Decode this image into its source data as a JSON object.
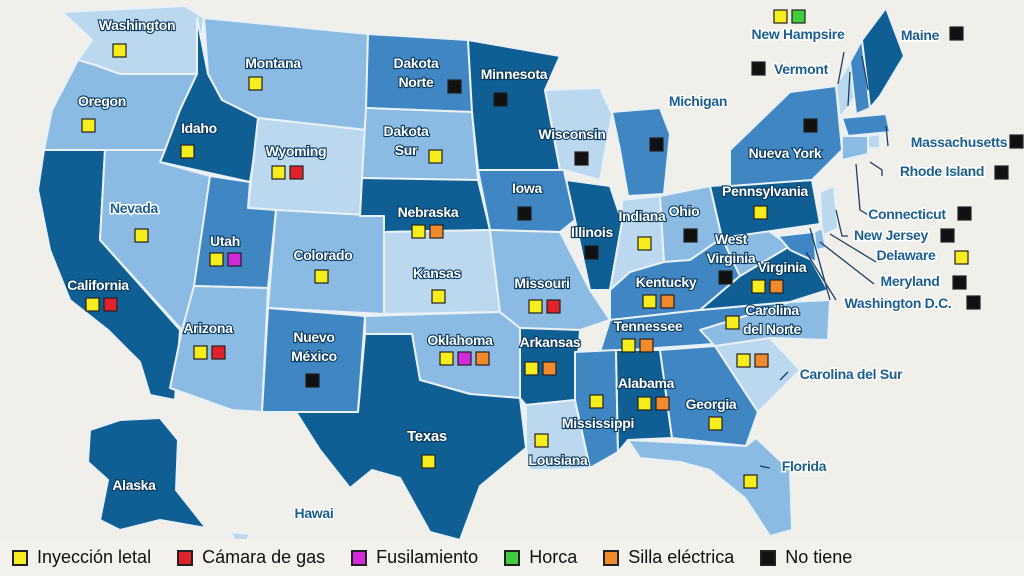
{
  "map": {
    "states": [
      {
        "id": "washington",
        "name": "Washington",
        "methods": [
          "lethal"
        ]
      },
      {
        "id": "oregon",
        "name": "Oregon",
        "methods": [
          "lethal"
        ]
      },
      {
        "id": "california",
        "name": "California",
        "methods": [
          "lethal",
          "gas"
        ]
      },
      {
        "id": "idaho",
        "name": "Idaho",
        "methods": [
          "lethal"
        ]
      },
      {
        "id": "nevada",
        "name": "Nevada",
        "methods": [
          "lethal"
        ]
      },
      {
        "id": "montana",
        "name": "Montana",
        "methods": [
          "lethal"
        ]
      },
      {
        "id": "wyoming",
        "name": "Wyoming",
        "methods": [
          "lethal",
          "gas"
        ]
      },
      {
        "id": "utah",
        "name": "Utah",
        "methods": [
          "lethal",
          "firing"
        ]
      },
      {
        "id": "arizona",
        "name": "Arizona",
        "methods": [
          "lethal",
          "gas"
        ]
      },
      {
        "id": "colorado",
        "name": "Colorado",
        "methods": [
          "lethal"
        ]
      },
      {
        "id": "nuevo-mexico",
        "name": "Nuevo\nMéxico",
        "methods": [
          "none"
        ]
      },
      {
        "id": "dakota-norte",
        "name": "Dakota\nNorte",
        "methods": [
          "none"
        ]
      },
      {
        "id": "dakota-sur",
        "name": "Dakota\nSur",
        "methods": [
          "lethal"
        ]
      },
      {
        "id": "nebraska",
        "name": "Nebraska",
        "methods": [
          "lethal",
          "electric"
        ]
      },
      {
        "id": "kansas",
        "name": "Kansas",
        "methods": [
          "lethal"
        ]
      },
      {
        "id": "oklahoma",
        "name": "Oklahoma",
        "methods": [
          "lethal",
          "firing",
          "electric"
        ]
      },
      {
        "id": "texas",
        "name": "Texas",
        "methods": [
          "lethal"
        ]
      },
      {
        "id": "minnesota",
        "name": "Minnesota",
        "methods": [
          "none"
        ]
      },
      {
        "id": "iowa",
        "name": "Iowa",
        "methods": [
          "none"
        ]
      },
      {
        "id": "missouri",
        "name": "Missouri",
        "methods": [
          "lethal",
          "gas"
        ]
      },
      {
        "id": "arkansas",
        "name": "Arkansas",
        "methods": [
          "lethal",
          "electric"
        ]
      },
      {
        "id": "lousiana",
        "name": "Lousiana",
        "methods": [
          "lethal"
        ]
      },
      {
        "id": "wisconsin",
        "name": "Wisconsin",
        "methods": [
          "none"
        ]
      },
      {
        "id": "illinois",
        "name": "Illinois",
        "methods": [
          "none"
        ]
      },
      {
        "id": "michigan",
        "name": "Michigan",
        "methods": [
          "none"
        ]
      },
      {
        "id": "indiana",
        "name": "Indiana",
        "methods": [
          "lethal"
        ]
      },
      {
        "id": "ohio",
        "name": "Ohio",
        "methods": [
          "none"
        ]
      },
      {
        "id": "kentucky",
        "name": "Kentucky",
        "methods": [
          "lethal",
          "electric"
        ]
      },
      {
        "id": "tennessee",
        "name": "Tennessee",
        "methods": [
          "lethal",
          "electric"
        ]
      },
      {
        "id": "mississippi",
        "name": "Mississippi",
        "methods": [
          "lethal"
        ]
      },
      {
        "id": "alabama",
        "name": "Alabama",
        "methods": [
          "lethal",
          "electric"
        ]
      },
      {
        "id": "georgia",
        "name": "Georgia",
        "methods": [
          "lethal"
        ]
      },
      {
        "id": "florida",
        "name": "Florida",
        "methods": [
          "lethal"
        ]
      },
      {
        "id": "carolina-del-sur",
        "name": "Carolina del Sur",
        "methods": [
          "lethal",
          "electric"
        ]
      },
      {
        "id": "carolina-del-norte",
        "name": "Carolina\ndel Norte",
        "methods": [
          "lethal"
        ]
      },
      {
        "id": "virginia",
        "name": "Virginia",
        "methods": [
          "lethal",
          "electric"
        ]
      },
      {
        "id": "west-virginia",
        "name": "West\nVirginia",
        "methods": [
          "none"
        ]
      },
      {
        "id": "pennsylvania",
        "name": "Pennsylvania",
        "methods": [
          "lethal"
        ]
      },
      {
        "id": "nueva-york",
        "name": "Nueva York",
        "methods": [
          "none"
        ]
      },
      {
        "id": "vermont",
        "name": "Vermont",
        "methods": [
          "none"
        ]
      },
      {
        "id": "new-hampsire",
        "name": "New Hampsire",
        "methods": [
          "lethal",
          "hanging"
        ]
      },
      {
        "id": "maine",
        "name": "Maine",
        "methods": [
          "none"
        ]
      },
      {
        "id": "massachusetts",
        "name": "Massachusetts",
        "methods": [
          "none"
        ]
      },
      {
        "id": "rhode-island",
        "name": "Rhode Island",
        "methods": [
          "none"
        ]
      },
      {
        "id": "connecticut",
        "name": "Connecticut",
        "methods": [
          "none"
        ]
      },
      {
        "id": "new-jersey",
        "name": "New Jersey",
        "methods": [
          "none"
        ]
      },
      {
        "id": "delaware",
        "name": "Delaware",
        "methods": [
          "lethal"
        ]
      },
      {
        "id": "meryland",
        "name": "Meryland",
        "methods": [
          "none"
        ]
      },
      {
        "id": "washington-dc",
        "name": "Washington D.C.",
        "methods": [
          "none"
        ]
      },
      {
        "id": "alaska",
        "name": "Alaska",
        "methods": []
      },
      {
        "id": "hawai",
        "name": "Hawai",
        "methods": []
      }
    ]
  },
  "legend": [
    {
      "key": "lethal",
      "label": "Inyección letal",
      "color": "#f7ec1c"
    },
    {
      "key": "gas",
      "label": "Cámara de gas",
      "color": "#e0222a"
    },
    {
      "key": "firing",
      "label": "Fusilamiento",
      "color": "#d22ad8"
    },
    {
      "key": "hanging",
      "label": "Horca",
      "color": "#3fcf3a"
    },
    {
      "key": "electric",
      "label": "Silla eléctrica",
      "color": "#f08a2a"
    },
    {
      "key": "none",
      "label": "No tiene",
      "color": "#111111"
    }
  ],
  "palette": {
    "dark": "#0f5f95",
    "medium": "#3f86c2",
    "light": "#8bbbe3",
    "pale": "#bcd8ef",
    "outline": "#e9f1f8"
  }
}
